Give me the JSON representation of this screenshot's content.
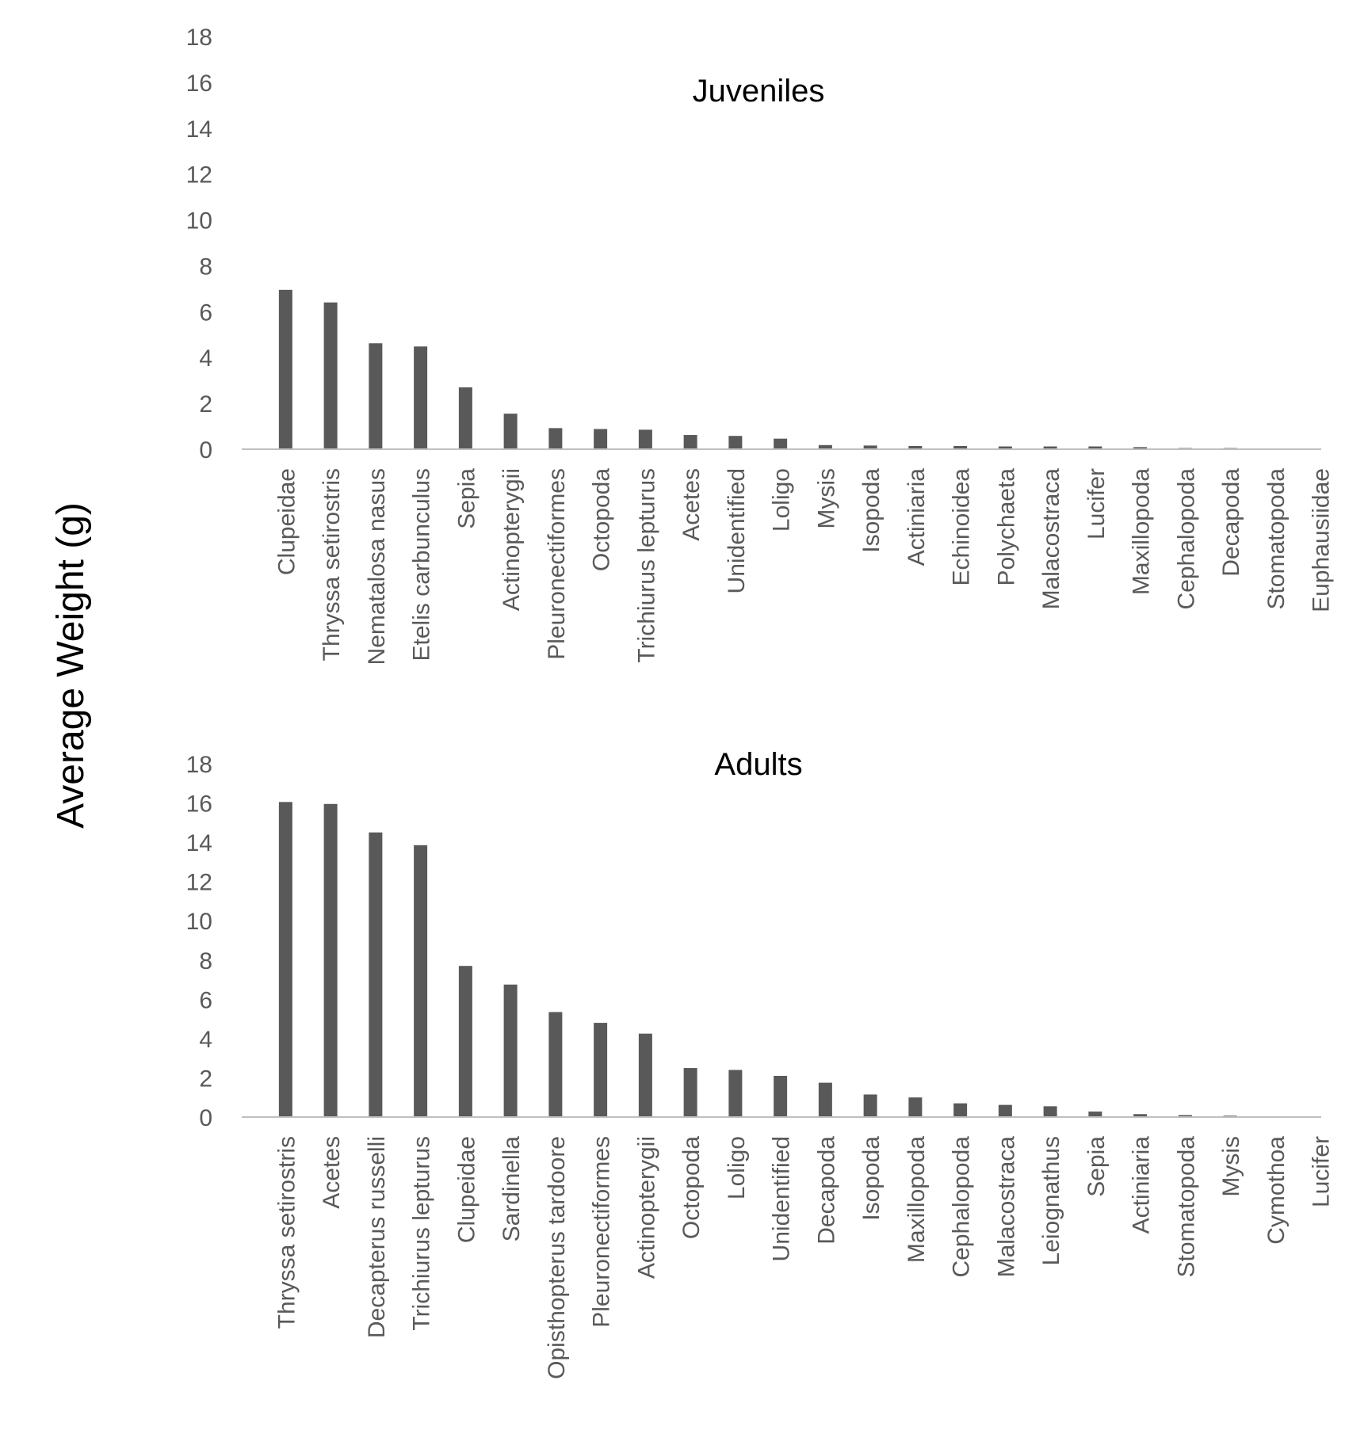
{
  "colors": {
    "bar": "#595959",
    "axis": "#bfbfbf",
    "text": "#595959",
    "title": "#000000"
  },
  "y_axis_label": "Average Weight (g)",
  "chart_data": [
    {
      "type": "bar",
      "title": "Juveniles",
      "ylim": [
        0,
        18
      ],
      "yticks": [
        "0",
        "2",
        "4",
        "6",
        "8",
        "10",
        "12",
        "14",
        "16",
        "18"
      ],
      "grid": false,
      "categories": [
        "Clupeidae",
        "Thryssa setirostris",
        "Nematalosa nasus",
        "Etelis  carbunculus",
        "Sepia",
        "Actinopterygii",
        "Pleuronectiformes",
        "Octopoda",
        "Trichiurus lepturus",
        "Acetes",
        "Unidentified",
        "Loligo",
        "Mysis",
        "Isopoda",
        "Actiniaria",
        "Echinoidea",
        "Polychaeta",
        "Malacostraca",
        "Lucifer",
        "Maxillopoda",
        "Cephalopoda",
        "Decapoda",
        "Stomatopoda",
        "Euphausiidae"
      ],
      "values": [
        6.95,
        6.4,
        4.62,
        4.48,
        2.7,
        1.55,
        0.92,
        0.88,
        0.85,
        0.62,
        0.58,
        0.46,
        0.18,
        0.16,
        0.14,
        0.14,
        0.12,
        0.12,
        0.12,
        0.09,
        0.05,
        0.05,
        0.0,
        0.0
      ]
    },
    {
      "type": "bar",
      "title": "Adults",
      "ylim": [
        0,
        18
      ],
      "yticks": [
        "0",
        "2",
        "4",
        "6",
        "8",
        "10",
        "12",
        "14",
        "16",
        "18"
      ],
      "grid": false,
      "categories": [
        "Thryssa setirostris",
        "Acetes",
        "Decapterus russelli",
        "Trichiurus lepturus",
        "Clupeidae",
        "Sardinella",
        "Opisthopterus tardoore",
        "Pleuronectiformes",
        "Actinopterygii",
        "Octopoda",
        "Loligo",
        "Unidentified",
        "Decapoda",
        "Isopoda",
        "Maxillopoda",
        "Cephalopoda",
        "Malacostraca",
        "Leiognathus",
        "Sepia",
        "Actiniaria",
        "Stomatopoda",
        "Mysis",
        "Cymothoa",
        "Lucifer"
      ],
      "values": [
        16.05,
        15.95,
        14.5,
        13.85,
        7.7,
        6.75,
        5.35,
        4.8,
        4.25,
        2.5,
        2.4,
        2.1,
        1.75,
        1.15,
        1.0,
        0.7,
        0.62,
        0.55,
        0.28,
        0.15,
        0.1,
        0.07,
        0.0,
        0.0
      ]
    }
  ]
}
